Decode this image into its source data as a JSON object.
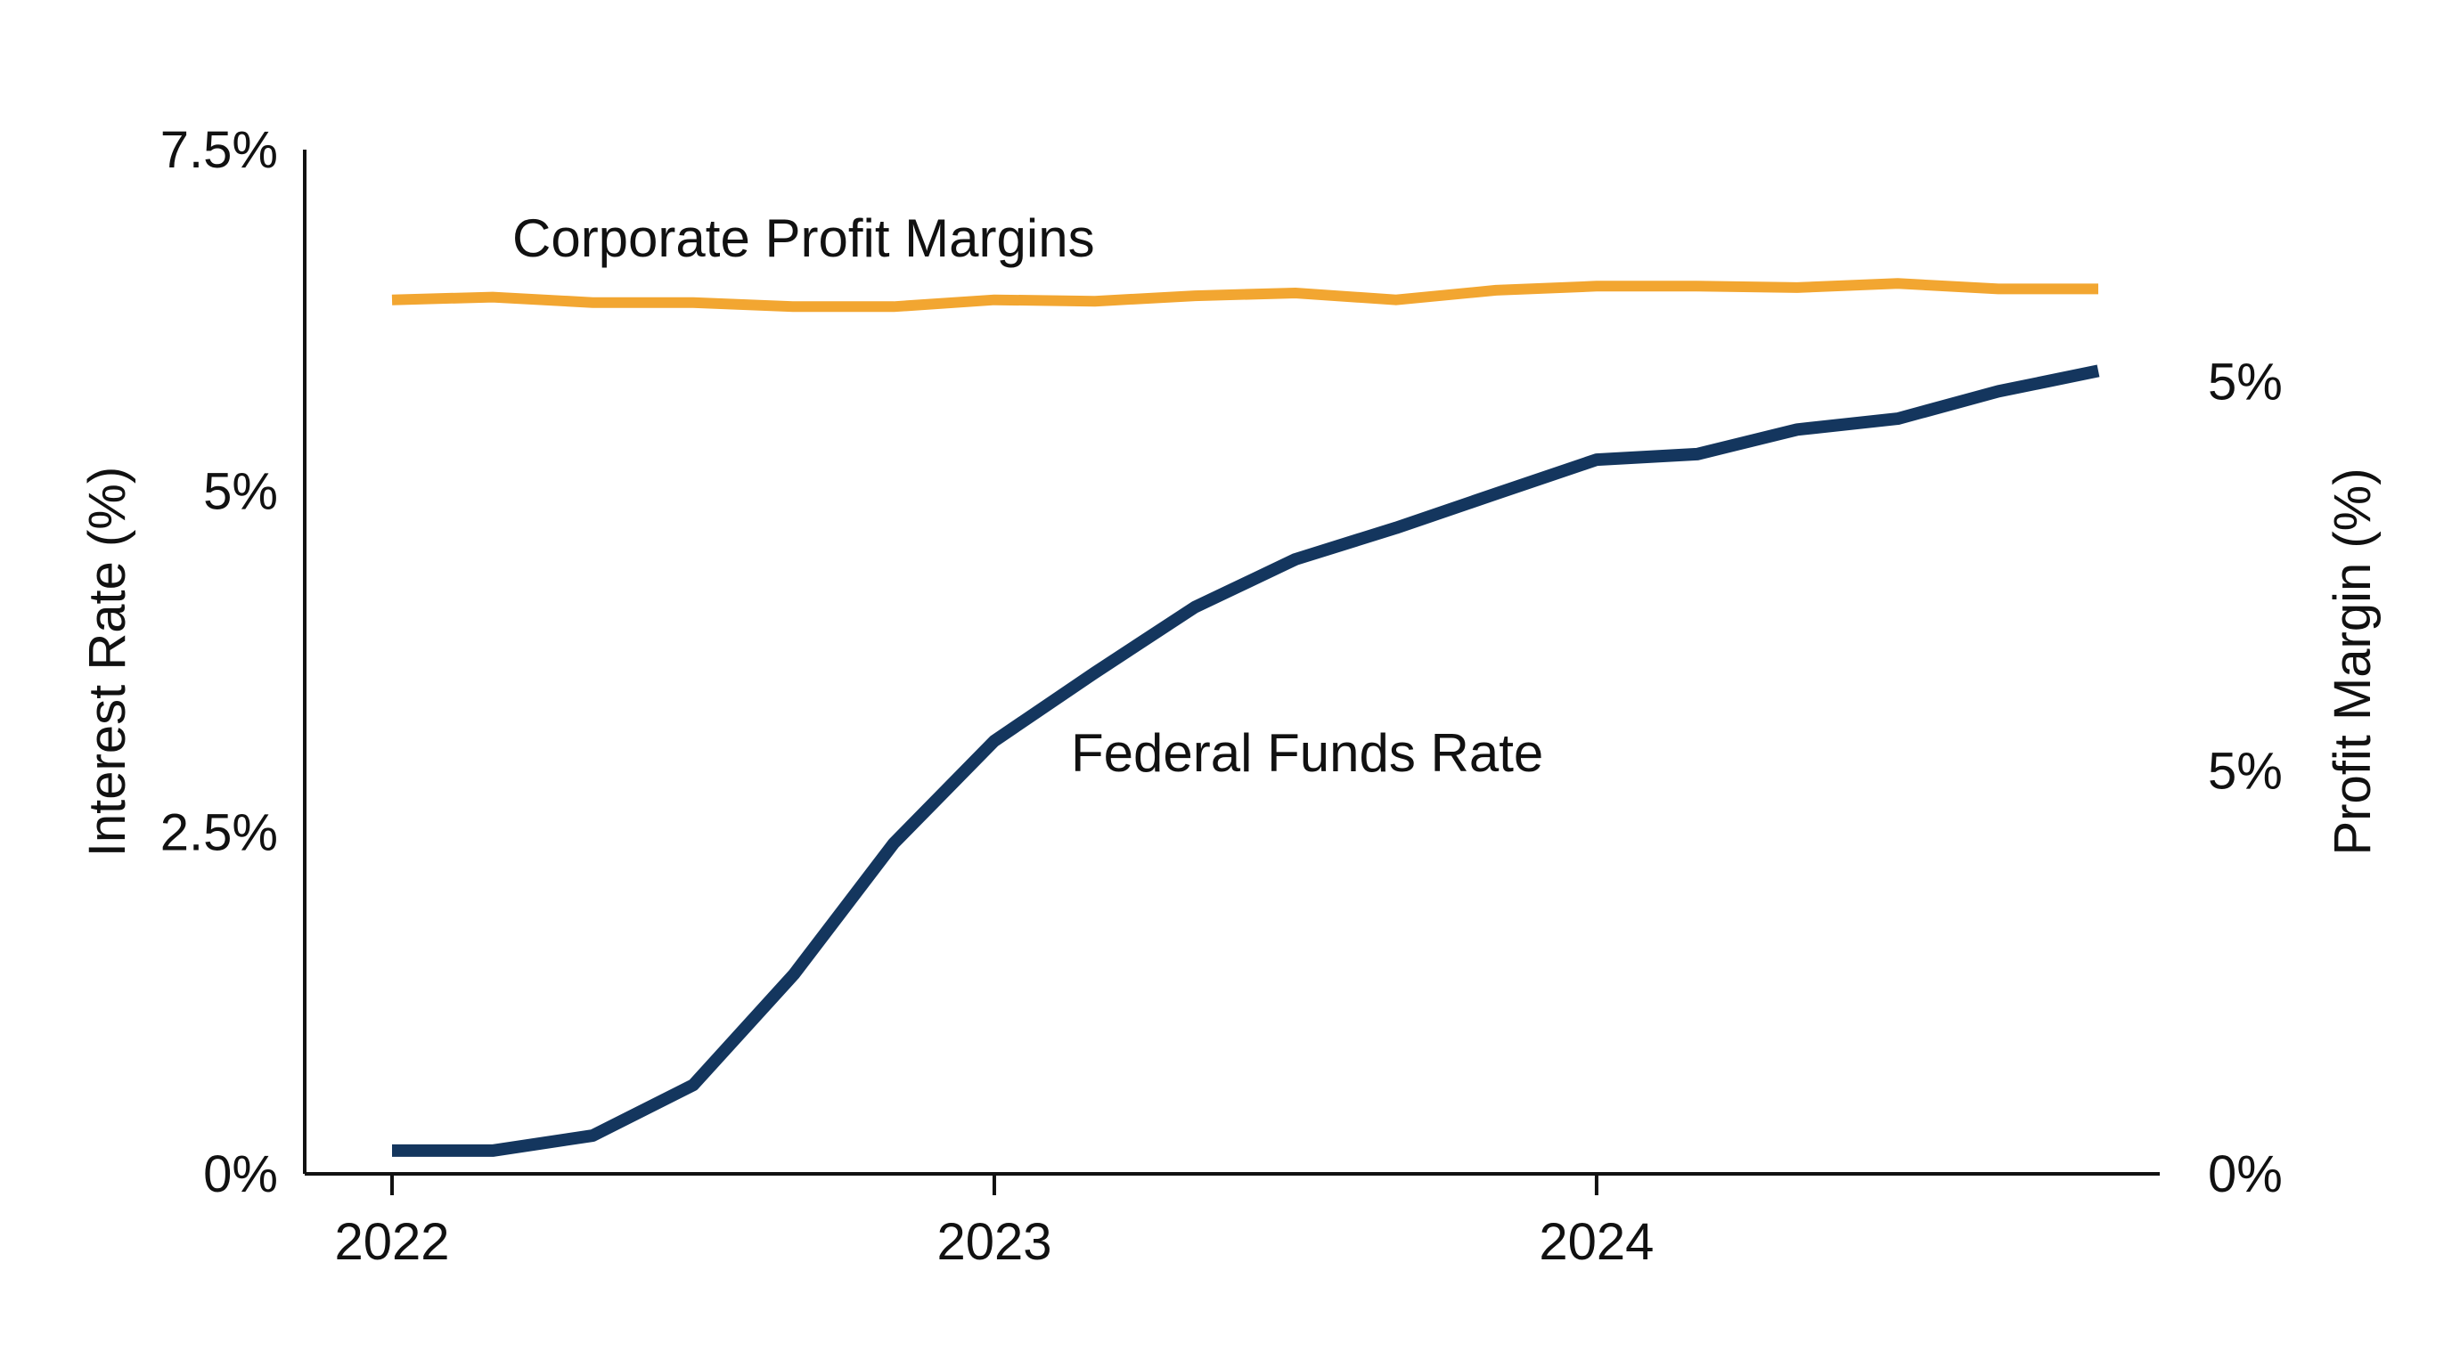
{
  "chart_data": {
    "type": "line",
    "x_ticks": [
      "2022",
      "2023",
      "2024"
    ],
    "x": [
      2022.0,
      2022.167,
      2022.333,
      2022.5,
      2022.667,
      2022.833,
      2023.0,
      2023.167,
      2023.333,
      2023.5,
      2023.667,
      2023.833,
      2024.0,
      2024.167,
      2024.333,
      2024.5,
      2024.667,
      2024.833
    ],
    "xlim": [
      2022.0,
      2024.833
    ],
    "left_axis": {
      "label": "Interest Rate (%)",
      "ylim": [
        0,
        7.5
      ],
      "ticks": [
        0,
        2.5,
        5,
        7.5
      ],
      "tick_labels": [
        "0%",
        "2.5%",
        "5%",
        "7.5%"
      ]
    },
    "right_axis": {
      "label": "Profit Margin (%)",
      "tick_labels": [
        "0%",
        "5%",
        "5%"
      ],
      "tick_positions_in_left_units": [
        0,
        2.95,
        5.8
      ]
    },
    "series": [
      {
        "name": "Corporate Profit Margins",
        "axis": "left",
        "color": "#F2A631",
        "values": [
          6.4,
          6.42,
          6.38,
          6.38,
          6.35,
          6.35,
          6.4,
          6.39,
          6.43,
          6.45,
          6.4,
          6.47,
          6.5,
          6.5,
          6.49,
          6.52,
          6.48,
          6.48
        ]
      },
      {
        "name": "Federal Funds Rate",
        "axis": "left",
        "color": "#14365E",
        "values": [
          0.17,
          0.17,
          0.28,
          0.65,
          1.46,
          2.42,
          3.17,
          3.67,
          4.15,
          4.5,
          4.73,
          4.98,
          5.23,
          5.27,
          5.45,
          5.53,
          5.73,
          5.88
        ]
      }
    ]
  }
}
